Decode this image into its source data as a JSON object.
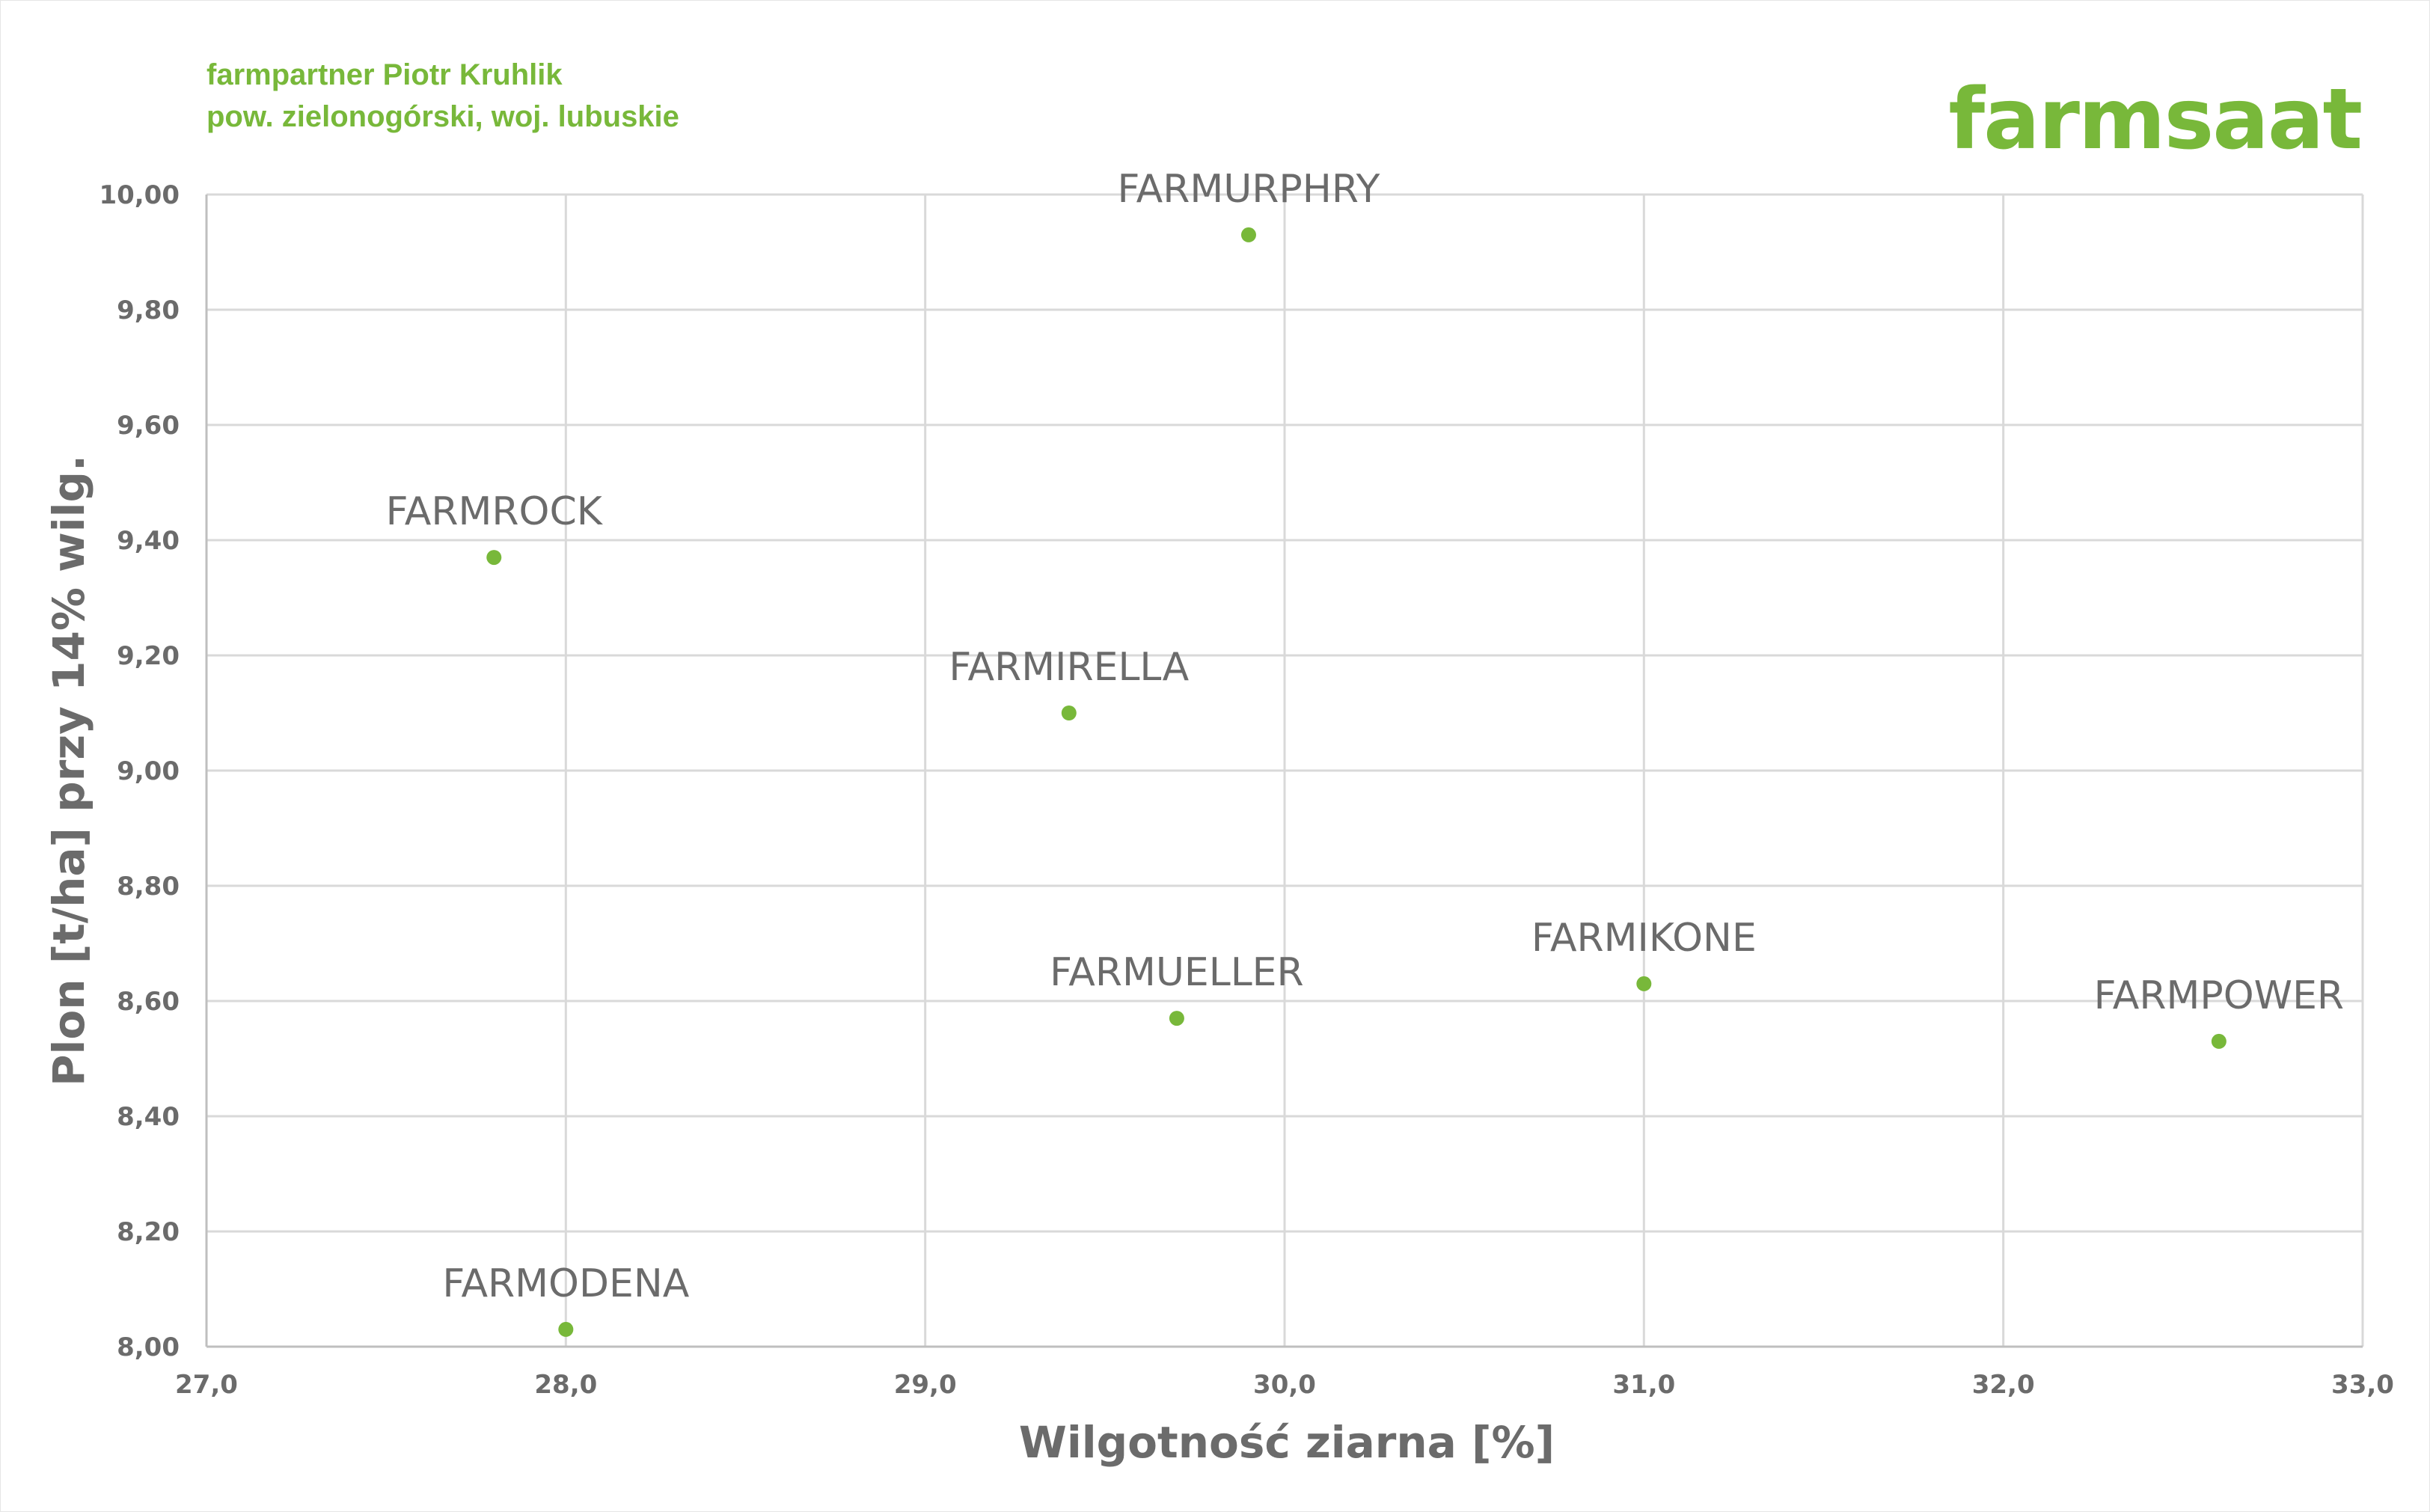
{
  "header": {
    "line1": "farmpartner Piotr Kruhlik",
    "line2": "pow. zielonogórski, woj. lubuskie",
    "logo_text": "farmsaat"
  },
  "chart_data": {
    "type": "scatter",
    "xlabel": "Wilgotność ziarna [%]",
    "ylabel": "Plon [t/ha] przy 14% wilg.",
    "xlim": [
      27.0,
      33.0
    ],
    "ylim": [
      8.0,
      10.0
    ],
    "x_ticks": [
      "27,0",
      "28,0",
      "29,0",
      "30,0",
      "31,0",
      "32,0",
      "33,0"
    ],
    "y_ticks": [
      "8,00",
      "8,20",
      "8,40",
      "8,60",
      "8,80",
      "9,00",
      "9,20",
      "9,40",
      "9,60",
      "9,80",
      "10,00"
    ],
    "grid": true,
    "legend": "none",
    "point_color": "#78b83a",
    "points": [
      {
        "label": "FARMURPHRY",
        "x": 29.9,
        "y": 9.93
      },
      {
        "label": "FARMROCK",
        "x": 27.8,
        "y": 9.37
      },
      {
        "label": "FARMIRELLA",
        "x": 29.4,
        "y": 9.1
      },
      {
        "label": "FARMUELLER",
        "x": 29.7,
        "y": 8.57
      },
      {
        "label": "FARMIKONE",
        "x": 31.0,
        "y": 8.63
      },
      {
        "label": "FARMPOWER",
        "x": 32.6,
        "y": 8.53
      },
      {
        "label": "FARMODENA",
        "x": 28.0,
        "y": 8.03
      }
    ]
  }
}
